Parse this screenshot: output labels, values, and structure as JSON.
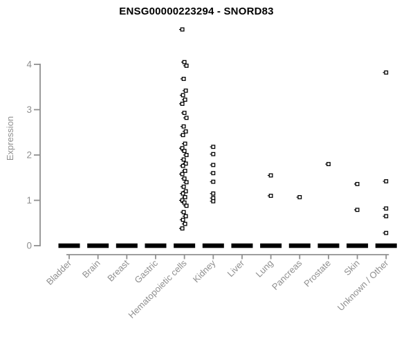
{
  "page": {
    "background": "#ffffff"
  },
  "chart_data": {
    "type": "scatter",
    "subtype": "strip-plot-by-category",
    "title": "ENSG00000223294 - SNORD83",
    "xlabel": "",
    "ylabel": "Expression",
    "ylim": [
      0,
      4.9
    ],
    "yticks": [
      0,
      1,
      2,
      3,
      4
    ],
    "grid": false,
    "legend": null,
    "marker": "open-square",
    "colors": {
      "title": "#000000",
      "axis": "#8f8f8f",
      "tick_label": "#8f8f8f",
      "point_stroke": "#000000",
      "point_fill": "#ffffff",
      "zero_bar": "#000000"
    },
    "categories": [
      "Bladder",
      "Brain",
      "Breast",
      "Gastric",
      "Hematopoietic cells",
      "Kidney",
      "Liver",
      "Lung",
      "Pancreas",
      "Prostate",
      "Skin",
      "Unknown / Other"
    ],
    "series": [
      {
        "name": "Bladder",
        "cluster_at_zero": true,
        "values_above_zero": []
      },
      {
        "name": "Brain",
        "cluster_at_zero": true,
        "values_above_zero": []
      },
      {
        "name": "Breast",
        "cluster_at_zero": true,
        "values_above_zero": []
      },
      {
        "name": "Gastric",
        "cluster_at_zero": true,
        "values_above_zero": []
      },
      {
        "name": "Hematopoietic cells",
        "cluster_at_zero": true,
        "values_above_zero": [
          4.77,
          4.05,
          3.97,
          3.68,
          3.42,
          3.32,
          3.22,
          3.13,
          2.93,
          2.82,
          2.63,
          2.52,
          2.44,
          2.25,
          2.15,
          2.09,
          2.0,
          1.9,
          1.81,
          1.76,
          1.65,
          1.58,
          1.48,
          1.4,
          1.3,
          1.2,
          1.15,
          1.07,
          1.0,
          0.95,
          0.88,
          0.74,
          0.65,
          0.57,
          0.48,
          0.38
        ]
      },
      {
        "name": "Kidney",
        "cluster_at_zero": true,
        "values_above_zero": [
          2.18,
          2.02,
          1.78,
          1.6,
          1.41,
          1.15,
          1.05,
          0.98
        ]
      },
      {
        "name": "Liver",
        "cluster_at_zero": true,
        "values_above_zero": []
      },
      {
        "name": "Lung",
        "cluster_at_zero": true,
        "values_above_zero": [
          1.55,
          1.1
        ]
      },
      {
        "name": "Pancreas",
        "cluster_at_zero": true,
        "values_above_zero": [
          1.07
        ]
      },
      {
        "name": "Prostate",
        "cluster_at_zero": true,
        "values_above_zero": [
          1.8
        ]
      },
      {
        "name": "Skin",
        "cluster_at_zero": true,
        "values_above_zero": [
          1.36,
          0.79
        ]
      },
      {
        "name": "Unknown / Other",
        "cluster_at_zero": true,
        "values_above_zero": [
          3.82,
          1.42,
          0.82,
          0.65,
          0.28
        ]
      }
    ]
  }
}
